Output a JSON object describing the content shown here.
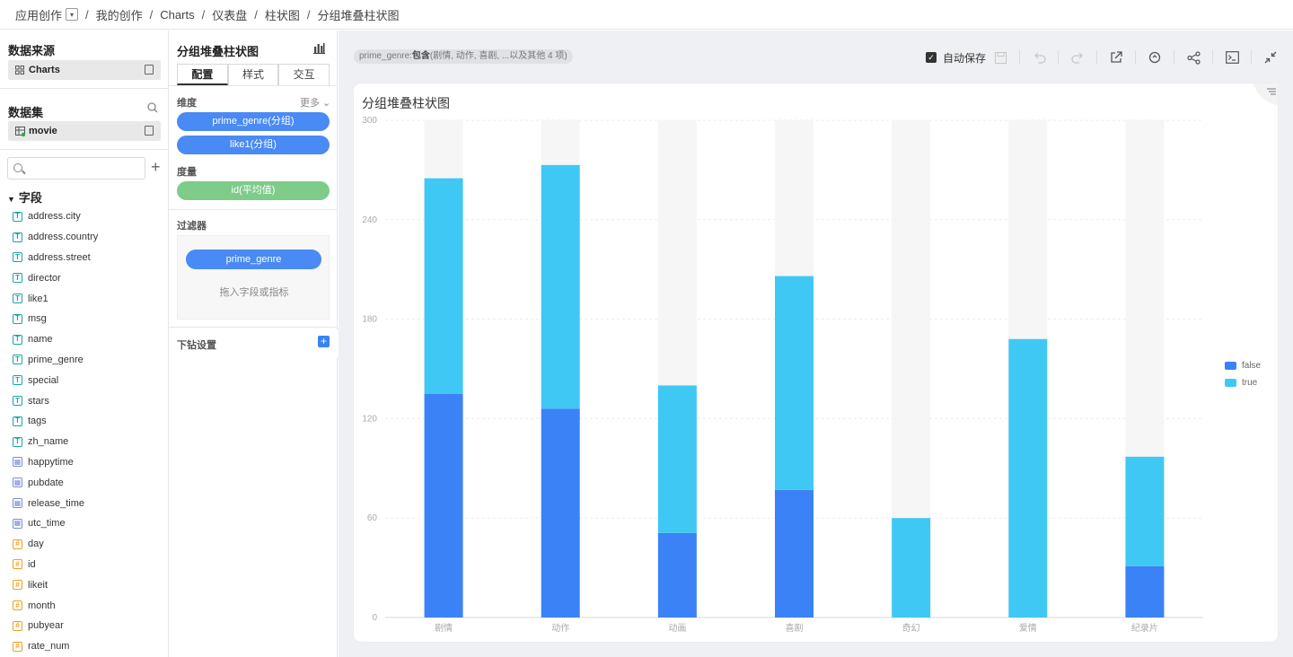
{
  "breadcrumb": {
    "items": [
      "应用创作",
      "我的创作",
      "Charts",
      "仪表盘",
      "柱状图",
      "分组堆叠柱状图"
    ],
    "separator": "/"
  },
  "left": {
    "datasource_title": "数据来源",
    "datasource_name": "Charts",
    "dataset_title": "数据集",
    "dataset_name": "movie",
    "fields_title": "字段",
    "fields": [
      {
        "name": "address.city",
        "type": "text"
      },
      {
        "name": "address.country",
        "type": "text"
      },
      {
        "name": "address.street",
        "type": "text"
      },
      {
        "name": "director",
        "type": "text"
      },
      {
        "name": "like1",
        "type": "text"
      },
      {
        "name": "msg",
        "type": "text"
      },
      {
        "name": "name",
        "type": "text"
      },
      {
        "name": "prime_genre",
        "type": "text"
      },
      {
        "name": "special",
        "type": "text"
      },
      {
        "name": "stars",
        "type": "text"
      },
      {
        "name": "tags",
        "type": "text"
      },
      {
        "name": "zh_name",
        "type": "text"
      },
      {
        "name": "happytime",
        "type": "date"
      },
      {
        "name": "pubdate",
        "type": "date"
      },
      {
        "name": "release_time",
        "type": "date"
      },
      {
        "name": "utc_time",
        "type": "date"
      },
      {
        "name": "day",
        "type": "num"
      },
      {
        "name": "id",
        "type": "num"
      },
      {
        "name": "likeit",
        "type": "num"
      },
      {
        "name": "month",
        "type": "num"
      },
      {
        "name": "pubyear",
        "type": "num"
      },
      {
        "name": "rate_num",
        "type": "num"
      }
    ],
    "field_type_glyphs": {
      "text": "T",
      "date": "▦",
      "num": "#"
    }
  },
  "mid": {
    "title": "分组堆叠柱状图",
    "tabs": [
      "配置",
      "样式",
      "交互"
    ],
    "dimension_label": "维度",
    "more_label": "更多",
    "dimensions": [
      "prime_genre(分组)",
      "like1(分组)"
    ],
    "measure_label": "度量",
    "measures": [
      "id(平均值)"
    ],
    "filter_label": "过滤器",
    "filter_pill": "prime_genre",
    "filter_hint": "拖入字段或指标",
    "drill_label": "下钻设置"
  },
  "canvas": {
    "filter_chip_prefix": "prime_genre:",
    "filter_chip_bold": "包含",
    "filter_chip_rest": "(剧情, 动作, 喜剧, ...以及其他 4 项)",
    "autosave_label": "自动保存"
  },
  "colors": {
    "false": "#3b82f6",
    "true": "#40c8f4",
    "track": "#f6f6f6",
    "accent": "#4a8af4"
  },
  "chart_data": {
    "type": "bar",
    "stacked": true,
    "title": "分组堆叠柱状图",
    "categories": [
      "剧情",
      "动作",
      "动画",
      "喜剧",
      "奇幻",
      "爱情",
      "纪录片"
    ],
    "series": [
      {
        "name": "false",
        "values": [
          135,
          126,
          51,
          77,
          0,
          0,
          31
        ]
      },
      {
        "name": "true",
        "values": [
          130,
          147,
          89,
          129,
          60,
          168,
          66
        ]
      }
    ],
    "yticks": [
      0,
      60,
      120,
      180,
      240,
      300
    ],
    "ylim": [
      0,
      300
    ],
    "grid": true,
    "legend_position": "right"
  }
}
